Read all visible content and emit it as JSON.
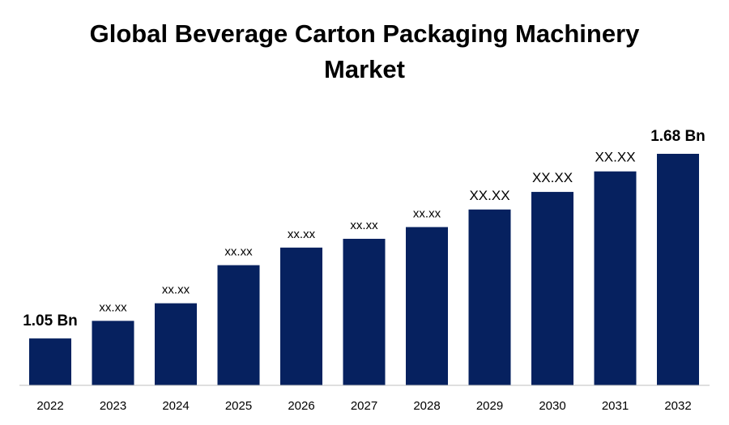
{
  "chart_data": {
    "type": "bar",
    "title_lines": [
      "Global Beverage Carton Packaging Machinery",
      "Market"
    ],
    "xlabel": "",
    "ylabel": "",
    "categories": [
      "2022",
      "2023",
      "2024",
      "2025",
      "2026",
      "2027",
      "2028",
      "2029",
      "2030",
      "2031",
      "2032"
    ],
    "values": [
      1.05,
      1.11,
      1.17,
      1.3,
      1.36,
      1.39,
      1.43,
      1.49,
      1.55,
      1.62,
      1.68
    ],
    "data_labels": [
      "1.05 Bn",
      "xx.xx",
      "xx.xx",
      "xx.xx",
      "xx.xx",
      "xx.xx",
      "xx.xx",
      "XX.XX",
      "XX.XX",
      "XX.XX",
      "1.68 Bn"
    ],
    "ylim": [
      0.89,
      1.68
    ],
    "grid": false,
    "legend": "none",
    "bar_color": "#06215f",
    "axis_color": "#bfbfbf"
  }
}
